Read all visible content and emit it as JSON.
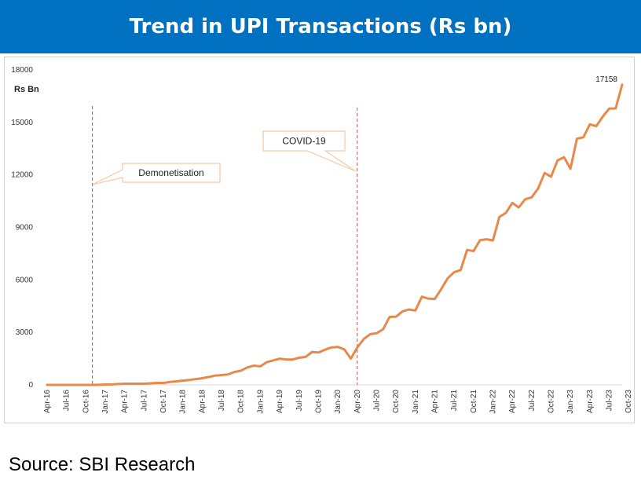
{
  "header": {
    "title": "Trend in UPI Transactions (Rs bn)"
  },
  "footer": {
    "source": "Source: SBI Research"
  },
  "colors": {
    "banner": "#0070C0",
    "line": "#E8894A",
    "marker": "#C0504D",
    "callout_border": "#F4C9A6"
  },
  "chart_data": {
    "type": "line",
    "title": "Trend in UPI Transactions (Rs bn)",
    "ylabel": "Rs Bn",
    "xlabel": "",
    "ylim": [
      0,
      18000
    ],
    "yticks": [
      0,
      3000,
      6000,
      9000,
      12000,
      15000,
      18000
    ],
    "ytick_labels": [
      "0",
      "3000",
      "6000",
      "9000",
      "12000",
      "15000",
      "18000"
    ],
    "x_tick_labels": [
      "Apr-16",
      "Jul-16",
      "Oct-16",
      "Jan-17",
      "Apr-17",
      "Jul-17",
      "Oct-17",
      "Jan-18",
      "Apr-18",
      "Jul-18",
      "Oct-18",
      "Jan-19",
      "Apr-19",
      "Jul-19",
      "Oct-19",
      "Jan-20",
      "Apr-20",
      "Jul-20",
      "Oct-20",
      "Jan-21",
      "Apr-21",
      "Jul-21",
      "Oct-21",
      "Jan-22",
      "Apr-22",
      "Jul-22",
      "Oct-22",
      "Jan-23",
      "Apr-23",
      "Jul-23",
      "Oct-23"
    ],
    "grid": false,
    "legend": "none",
    "series": [
      {
        "name": "UPI Transactions (Rs bn)",
        "values": [
          0,
          0,
          0,
          0,
          0,
          0,
          0,
          1,
          7,
          20,
          30,
          50,
          70,
          70,
          70,
          70,
          90,
          110,
          110,
          170,
          200,
          240,
          280,
          330,
          380,
          450,
          530,
          560,
          600,
          740,
          810,
          1000,
          1100,
          1060,
          1300,
          1400,
          1500,
          1450,
          1450,
          1550,
          1600,
          1880,
          1850,
          2010,
          2140,
          2170,
          2030,
          1500,
          2140,
          2620,
          2900,
          2950,
          3180,
          3880,
          3900,
          4200,
          4310,
          4250,
          5040,
          4930,
          4910,
          5480,
          6090,
          6440,
          6560,
          7710,
          7650,
          8270,
          8320,
          8260,
          9600,
          9830,
          10400,
          10140,
          10610,
          10720,
          11230,
          12110,
          11900,
          12830,
          13010,
          12350,
          14070,
          14150,
          14890,
          14790,
          15330,
          15790,
          15800,
          17158
        ],
        "point_labels": [
          {
            "index": 89,
            "text": "17158"
          }
        ]
      }
    ],
    "annotations": [
      {
        "text": "Demonetisation",
        "x_index": 7
      },
      {
        "text": "COVID-19",
        "x_index": 48
      }
    ]
  }
}
